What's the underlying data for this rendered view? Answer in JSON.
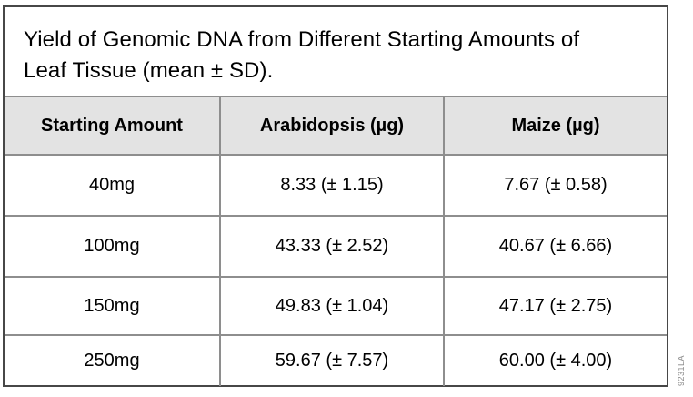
{
  "figure": {
    "title_lines": [
      "Yield of Genomic DNA from Different Starting Amounts of",
      "Leaf Tissue (mean ± SD)."
    ]
  },
  "table": {
    "headers": [
      "Starting Amount",
      "Arabidopsis (µg)",
      "Maize (µg)"
    ],
    "rows": [
      {
        "starting_amount": "40mg",
        "arabidopsis": "8.33 (± 1.15)",
        "maize": "7.67 (± 0.58)"
      },
      {
        "starting_amount": "100mg",
        "arabidopsis": "43.33 (± 2.52)",
        "maize": "40.67 (± 6.66)"
      },
      {
        "starting_amount": "150mg",
        "arabidopsis": "49.83 (± 1.04)",
        "maize": "47.17 (± 2.75)"
      },
      {
        "starting_amount": "250mg",
        "arabidopsis": "59.67 (± 7.57)",
        "maize": "60.00 (± 4.00)"
      }
    ]
  },
  "watermark": {
    "text": "9231LA"
  },
  "colors": {
    "header_bg": "#e3e3e3",
    "grid_border": "#8e8e8e",
    "outer_border": "#474747",
    "watermark_color": "#8a8a8a",
    "page_bg": "#ffffff",
    "text_color": "#000000"
  },
  "chart_data": {
    "type": "table",
    "title": "Yield of Genomic DNA from Different Starting Amounts of Leaf Tissue (mean ± SD).",
    "columns": [
      "Starting Amount",
      "Arabidopsis (µg)",
      "Maize (µg)"
    ],
    "categories": [
      "40mg",
      "100mg",
      "150mg",
      "250mg"
    ],
    "series": [
      {
        "name": "Arabidopsis (µg)",
        "mean": [
          8.33,
          43.33,
          49.83,
          59.67
        ],
        "sd": [
          1.15,
          2.52,
          1.04,
          7.57
        ]
      },
      {
        "name": "Maize (µg)",
        "mean": [
          7.67,
          40.67,
          47.17,
          60.0
        ],
        "sd": [
          0.58,
          6.66,
          2.75,
          4.0
        ]
      }
    ],
    "cells": [
      [
        "40mg",
        "8.33 (± 1.15)",
        "7.67 (± 0.58)"
      ],
      [
        "100mg",
        "43.33 (± 2.52)",
        "40.67 (± 6.66)"
      ],
      [
        "150mg",
        "49.83 (± 1.04)",
        "47.17 (± 2.75)"
      ],
      [
        "250mg",
        "59.67 (± 7.57)",
        "60.00 (± 4.00)"
      ]
    ]
  }
}
